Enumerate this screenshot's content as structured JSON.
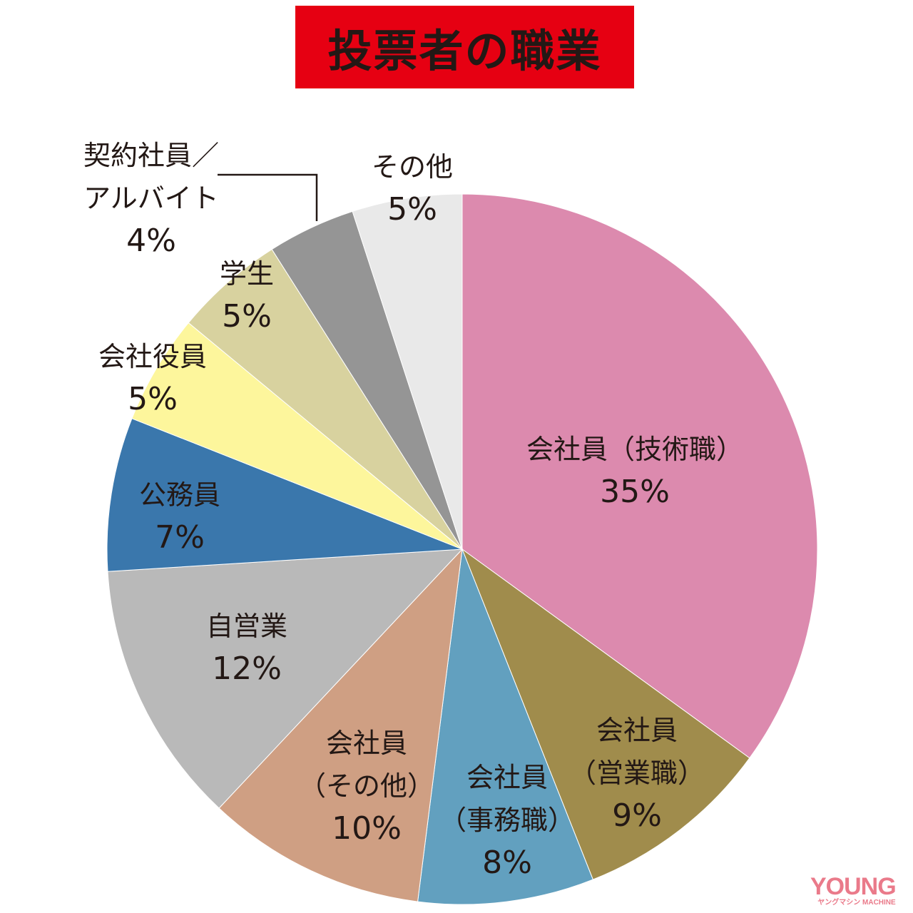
{
  "title": "投票者の職業",
  "logo": {
    "main": "YOUNG",
    "sub": "ヤングマシン MACHINE"
  },
  "chart_data": {
    "type": "pie",
    "title": "投票者の職業",
    "start_angle": "12 o'clock",
    "direction": "clockwise",
    "categories": [
      "会社員（技術職）",
      "会社員（営業職）",
      "会社員（事務職）",
      "会社員（その他）",
      "自営業",
      "公務員",
      "会社役員",
      "学生",
      "契約社員／アルバイト",
      "その他"
    ],
    "values": [
      35,
      9,
      8,
      10,
      12,
      7,
      5,
      5,
      4,
      5
    ],
    "unit": "%",
    "colors": [
      "#dc8aae",
      "#a08c4c",
      "#62a0bf",
      "#cf9f83",
      "#b9b9b9",
      "#3a77ac",
      "#fdf69c",
      "#d8d29f",
      "#959595",
      "#e9e9e9"
    ],
    "legend": "none (labels placed on/near slices)"
  },
  "labels": [
    {
      "lines": [
        "会社員（技術職）"
      ],
      "pct": "35%"
    },
    {
      "lines": [
        "会社員",
        "（営業職）"
      ],
      "pct": "9%"
    },
    {
      "lines": [
        "会社員",
        "（事務職）"
      ],
      "pct": "8%"
    },
    {
      "lines": [
        "会社員",
        "（その他）"
      ],
      "pct": "10%"
    },
    {
      "lines": [
        "自営業"
      ],
      "pct": "12%"
    },
    {
      "lines": [
        "公務員"
      ],
      "pct": "7%"
    },
    {
      "lines": [
        "会社役員"
      ],
      "pct": "5%"
    },
    {
      "lines": [
        "学生"
      ],
      "pct": "5%"
    },
    {
      "lines": [
        "契約社員／",
        "アルバイト"
      ],
      "pct": "4%"
    },
    {
      "lines": [
        "その他"
      ],
      "pct": "5%"
    }
  ]
}
